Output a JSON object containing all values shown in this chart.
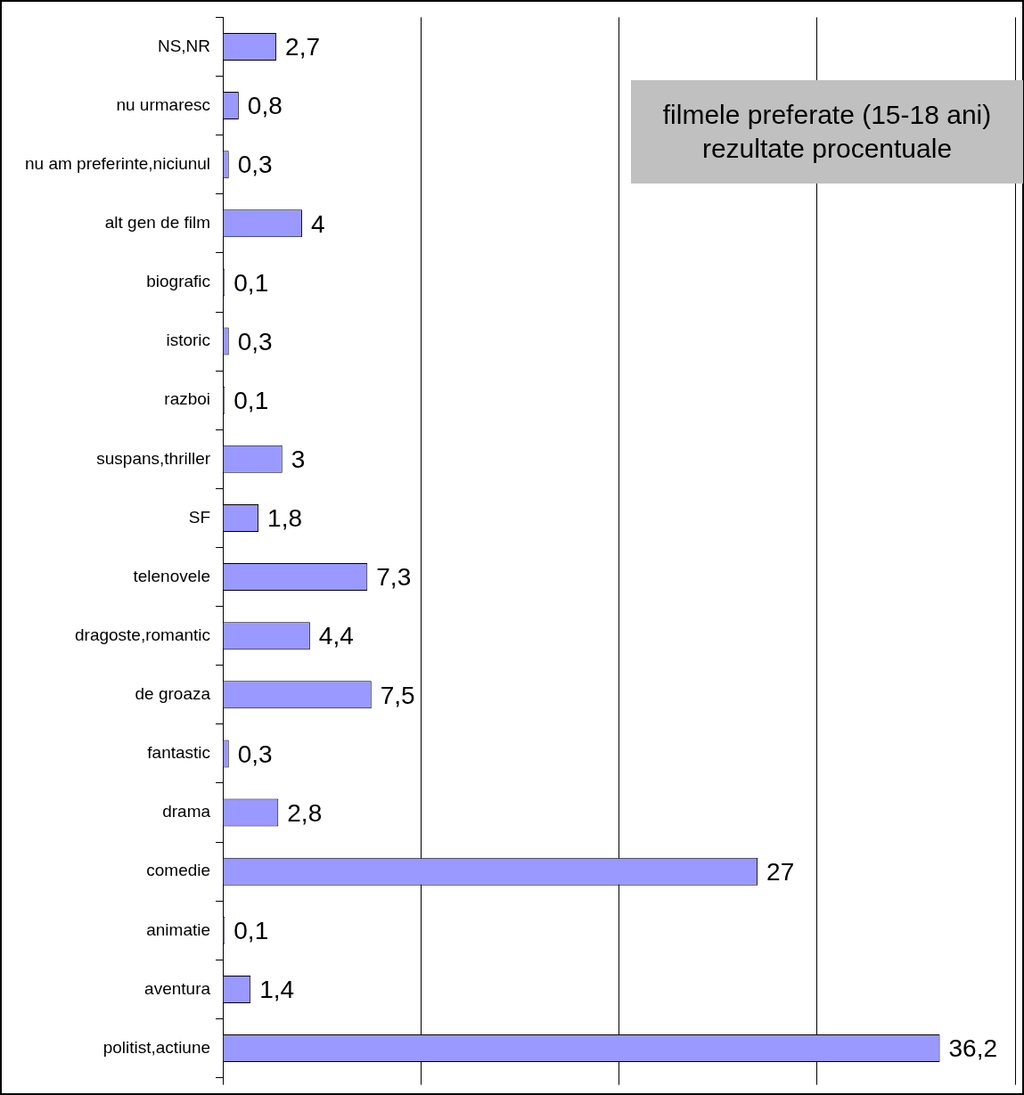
{
  "chart_data": {
    "type": "bar",
    "orientation": "horizontal",
    "title": "filmele preferate (15-18 ani)",
    "subtitle": "rezultate procentuale",
    "categories": [
      "NS,NR",
      "nu urmaresc",
      "nu am preferinte,niciunul",
      "alt gen de film",
      "biografic",
      "istoric",
      "razboi",
      "suspans,thriller",
      "SF",
      "telenovele",
      "dragoste,romantic",
      "de groaza",
      "fantastic",
      "drama",
      "comedie",
      "animatie",
      "aventura",
      "politist,actiune"
    ],
    "values": [
      2.7,
      0.8,
      0.3,
      4,
      0.1,
      0.3,
      0.1,
      3,
      1.8,
      7.3,
      4.4,
      7.5,
      0.3,
      2.8,
      27,
      0.1,
      1.4,
      36.2
    ],
    "value_labels": [
      "2,7",
      "0,8",
      "0,3",
      "4",
      "0,1",
      "0,3",
      "0,1",
      "3",
      "1,8",
      "7,3",
      "4,4",
      "7,5",
      "0,3",
      "2,8",
      "27",
      "0,1",
      "1,4",
      "36,2"
    ],
    "color": "#9999ff",
    "grid": "x",
    "tick_labels": "y",
    "legend": false
  }
}
